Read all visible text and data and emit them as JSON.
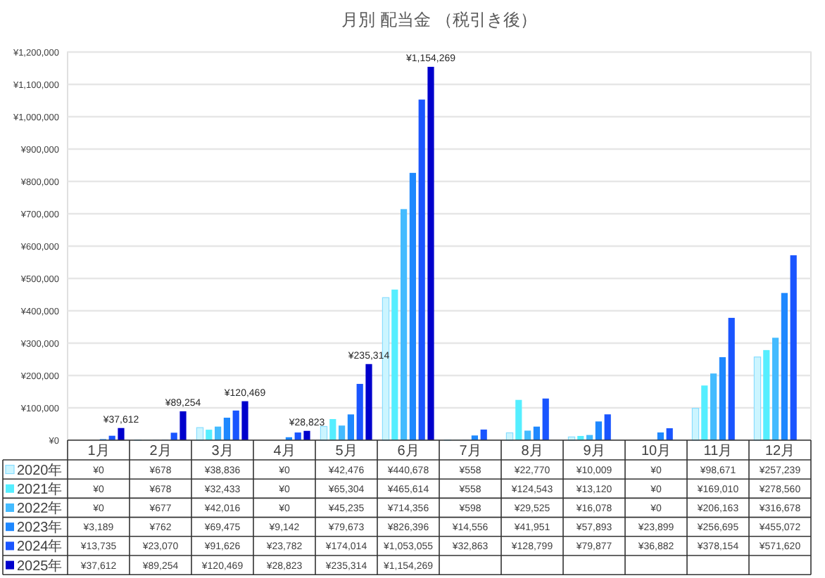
{
  "chart_data": {
    "type": "bar",
    "title": "月別 配当金 （税引き後）",
    "categories": [
      "1月",
      "2月",
      "3月",
      "4月",
      "5月",
      "6月",
      "7月",
      "8月",
      "9月",
      "10月",
      "11月",
      "12月"
    ],
    "series": [
      {
        "name": "2020年",
        "color": "#ccf5ff",
        "values": [
          0,
          678,
          38836,
          0,
          42476,
          440678,
          558,
          22770,
          10009,
          0,
          98671,
          257239
        ],
        "value_labels": [
          "¥0",
          "¥678",
          "¥38,836",
          "¥0",
          "¥42,476",
          "¥440,678",
          "¥558",
          "¥22,770",
          "¥10,009",
          "¥0",
          "¥98,671",
          "¥257,239"
        ]
      },
      {
        "name": "2021年",
        "color": "#55eeff",
        "values": [
          0,
          678,
          32433,
          0,
          65304,
          465614,
          558,
          124543,
          13120,
          0,
          169010,
          278560
        ],
        "value_labels": [
          "¥0",
          "¥678",
          "¥32,433",
          "¥0",
          "¥65,304",
          "¥465,614",
          "¥558",
          "¥124,543",
          "¥13,120",
          "¥0",
          "¥169,010",
          "¥278,560"
        ]
      },
      {
        "name": "2022年",
        "color": "#44bbff",
        "values": [
          0,
          677,
          42016,
          0,
          45235,
          714356,
          598,
          29525,
          16078,
          0,
          206163,
          316678
        ],
        "value_labels": [
          "¥0",
          "¥677",
          "¥42,016",
          "¥0",
          "¥45,235",
          "¥714,356",
          "¥598",
          "¥29,525",
          "¥16,078",
          "¥0",
          "¥206,163",
          "¥316,678"
        ]
      },
      {
        "name": "2023年",
        "color": "#1e88ff",
        "values": [
          3189,
          762,
          69475,
          9142,
          79673,
          826396,
          14556,
          41951,
          57893,
          23899,
          256695,
          455072
        ],
        "value_labels": [
          "¥3,189",
          "¥762",
          "¥69,475",
          "¥9,142",
          "¥79,673",
          "¥826,396",
          "¥14,556",
          "¥41,951",
          "¥57,893",
          "¥23,899",
          "¥256,695",
          "¥455,072"
        ]
      },
      {
        "name": "2024年",
        "color": "#1a55ff",
        "values": [
          13735,
          23070,
          91626,
          23782,
          174014,
          1053055,
          32863,
          128799,
          79877,
          36882,
          378154,
          571620
        ],
        "value_labels": [
          "¥13,735",
          "¥23,070",
          "¥91,626",
          "¥23,782",
          "¥174,014",
          "¥1,053,055",
          "¥32,863",
          "¥128,799",
          "¥79,877",
          "¥36,882",
          "¥378,154",
          "¥571,620"
        ]
      },
      {
        "name": "2025年",
        "color": "#0000cc",
        "values": [
          37612,
          89254,
          120469,
          28823,
          235314,
          1154269,
          null,
          null,
          null,
          null,
          null,
          null
        ],
        "value_labels": [
          "¥37,612",
          "¥89,254",
          "¥120,469",
          "¥28,823",
          "¥235,314",
          "¥1,154,269",
          null,
          null,
          null,
          null,
          null,
          null
        ]
      }
    ],
    "ylim": [
      0,
      1200000
    ],
    "yticks": [
      {
        "value": 0,
        "label": "¥0"
      },
      {
        "value": 100000,
        "label": "¥100,000"
      },
      {
        "value": 200000,
        "label": "¥200,000"
      },
      {
        "value": 300000,
        "label": "¥300,000"
      },
      {
        "value": 400000,
        "label": "¥400,000"
      },
      {
        "value": 500000,
        "label": "¥500,000"
      },
      {
        "value": 600000,
        "label": "¥600,000"
      },
      {
        "value": 700000,
        "label": "¥700,000"
      },
      {
        "value": 800000,
        "label": "¥800,000"
      },
      {
        "value": 900000,
        "label": "¥900,000"
      },
      {
        "value": 1000000,
        "label": "¥1,000,000"
      },
      {
        "value": 1100000,
        "label": "¥1,100,000"
      },
      {
        "value": 1200000,
        "label": "¥1,200,000"
      }
    ],
    "grid": "y",
    "legend": "bottom"
  }
}
